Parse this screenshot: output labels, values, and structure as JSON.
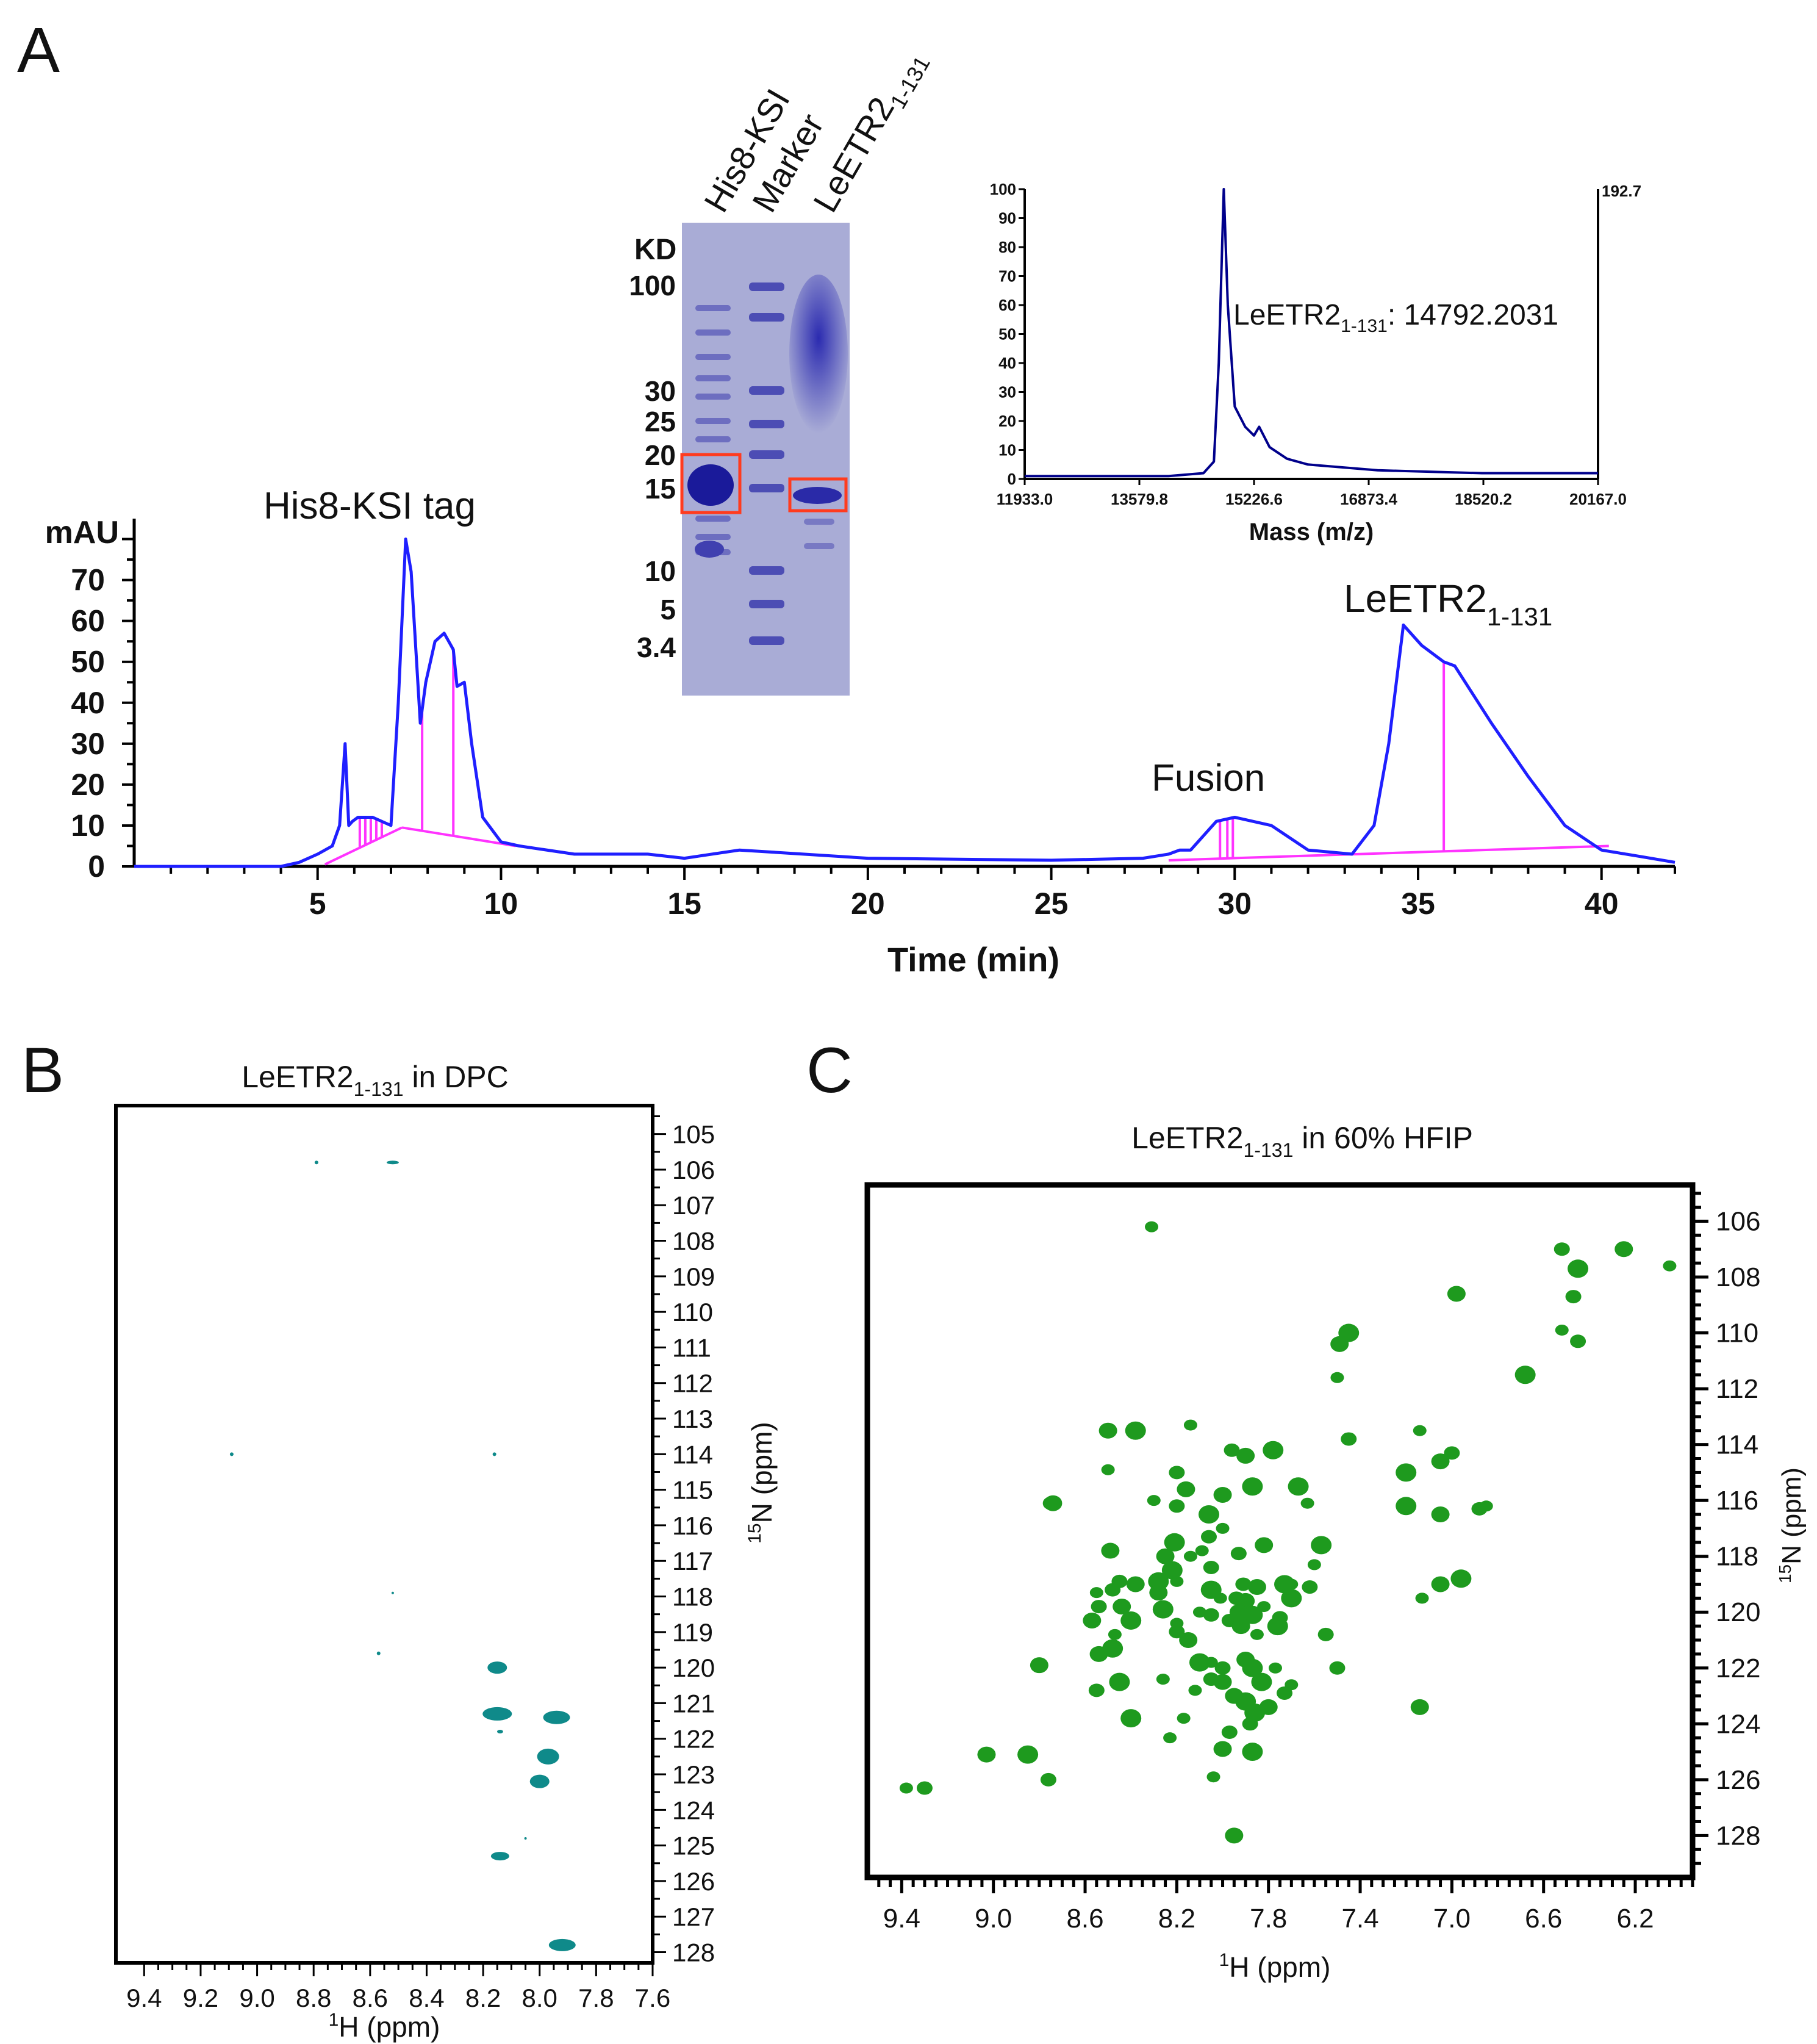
{
  "panels": {
    "a": "A",
    "b": "B",
    "c": "C"
  },
  "colors": {
    "trace": "#1f1fff",
    "baseline": "#ff33ff",
    "ms_trace": "#00008b",
    "ms_label": "#8b1a1a",
    "mass_axis": "#ff2020",
    "spot_b": "#0f8a8a",
    "spot_c": "#1e9a1e",
    "gel_bg": "#a9acd6",
    "gel_band": "#3c3cae",
    "box": "#ff3b1f"
  },
  "chromatogram": {
    "ylabel": "mAU",
    "xlabel": "Time (min)",
    "x_ticks": [
      "5",
      "10",
      "15",
      "20",
      "25",
      "30",
      "35",
      "40"
    ],
    "y_ticks": [
      "0",
      "10",
      "20",
      "30",
      "40",
      "50",
      "60",
      "70"
    ],
    "peak_labels": {
      "his": "His8-KSI tag",
      "fusion": "Fusion",
      "le_main": "LeETR2",
      "le_sub": "1-131"
    }
  },
  "gel": {
    "lanes": [
      "His8-KSI",
      "Marker",
      "LeETR2"
    ],
    "lane3_sub": "1-131",
    "kd_label": "KD",
    "markers": [
      "100",
      "30",
      "25",
      "20",
      "15",
      "10",
      "5",
      "3.4"
    ]
  },
  "ms": {
    "y_ticks": [
      "0",
      "10",
      "20",
      "30",
      "40",
      "50",
      "60",
      "70",
      "80",
      "90",
      "100"
    ],
    "x_ticks": [
      "11933.0",
      "13579.8",
      "15226.6",
      "16873.4",
      "18520.2",
      "20167.0"
    ],
    "right_label": "192.7",
    "xlabel": "Mass (m/z)",
    "peak_main": "LeETR2",
    "peak_sub": "1-131",
    "peak_value": ": 14792.2031"
  },
  "nmr_b": {
    "title_main": "LeETR2",
    "title_sub": "1-131",
    "title_rest": " in DPC",
    "x_ticks": [
      "9.4",
      "9.2",
      "9.0",
      "8.8",
      "8.6",
      "8.4",
      "8.2",
      "8.0",
      "7.8",
      "7.6"
    ],
    "y_ticks": [
      "105",
      "106",
      "107",
      "108",
      "109",
      "110",
      "111",
      "112",
      "113",
      "114",
      "115",
      "116",
      "117",
      "118",
      "119",
      "120",
      "121",
      "122",
      "123",
      "124",
      "125",
      "126",
      "127",
      "128"
    ],
    "xlabel_sup": "1",
    "xlabel": "H (ppm)",
    "ylabel_sup": "15",
    "ylabel": "N (ppm)"
  },
  "nmr_c": {
    "title_main": "LeETR2",
    "title_sub": "1-131",
    "title_rest": " in 60% HFIP",
    "x_ticks": [
      "9.4",
      "9.0",
      "8.6",
      "8.2",
      "7.8",
      "7.4",
      "7.0",
      "6.6",
      "6.2"
    ],
    "y_ticks": [
      "106",
      "108",
      "110",
      "112",
      "114",
      "116",
      "118",
      "120",
      "122",
      "124",
      "126",
      "128"
    ],
    "xlabel_sup": "1",
    "xlabel": "H (ppm)",
    "ylabel_sup": "15",
    "ylabel": "N (ppm)"
  },
  "chart_data": [
    {
      "type": "line",
      "title": "",
      "xlabel": "Time (min)",
      "ylabel": "mAU",
      "xlim": [
        0,
        42
      ],
      "ylim": [
        0,
        85
      ],
      "series": [
        {
          "x": [
            0,
            4,
            4.5,
            5,
            5.4,
            5.6,
            5.75,
            5.85,
            5.95,
            6.1,
            6.5,
            7.0,
            7.2,
            7.4,
            7.55,
            7.8,
            7.95,
            8.2,
            8.45,
            8.7,
            8.8,
            9.0,
            9.2,
            9.5,
            10,
            10.5,
            12,
            14,
            15,
            16.5,
            20,
            25,
            27.5,
            28.2,
            28.5,
            28.8,
            29.5,
            30,
            31,
            32,
            33.2,
            33.8,
            34.2,
            34.6,
            35.1,
            35.7,
            36.0,
            37,
            38,
            39,
            40,
            41,
            42
          ],
          "y": [
            0,
            0,
            1,
            3,
            5,
            10,
            30,
            10,
            11,
            12,
            12,
            10,
            40,
            80,
            72,
            35,
            45,
            55,
            57,
            53,
            44,
            45,
            30,
            12,
            6,
            5,
            3,
            3,
            2,
            4,
            2,
            1.5,
            2,
            3,
            4,
            4,
            11,
            12,
            10,
            4,
            3,
            10,
            30,
            59,
            54,
            50,
            49,
            35,
            22,
            10,
            4,
            2.5,
            1
          ]
        }
      ]
    },
    {
      "type": "line",
      "title": "",
      "xlabel": "Mass (m/z)",
      "ylabel": "",
      "xlim": [
        11933.0,
        20167.0
      ],
      "ylim": [
        0,
        100
      ],
      "series": [
        {
          "x": [
            11933,
            13000,
            14000,
            14500,
            14650,
            14720,
            14792,
            14850,
            14950,
            15100,
            15226,
            15300,
            15450,
            15700,
            16000,
            17000,
            18500,
            20167
          ],
          "y": [
            1,
            1,
            1,
            2,
            6,
            40,
            100,
            60,
            25,
            18,
            15,
            18,
            11,
            7,
            5,
            3,
            2,
            2
          ]
        }
      ]
    },
    {
      "type": "scatter",
      "title": "LeETR2 1-131 in DPC",
      "xlabel": "1H (ppm)",
      "ylabel": "15N (ppm)",
      "xlim": [
        9.5,
        7.6
      ],
      "ylim": [
        104.2,
        128.3
      ],
      "points": [
        [
          8.52,
          105.8,
          10,
          3
        ],
        [
          8.79,
          105.8,
          3,
          3
        ],
        [
          9.09,
          114.0,
          3,
          3
        ],
        [
          8.16,
          114.0,
          3,
          3
        ],
        [
          8.52,
          117.9,
          2,
          2
        ],
        [
          8.57,
          119.6,
          3,
          3
        ],
        [
          8.15,
          120.0,
          16,
          10
        ],
        [
          8.15,
          121.3,
          24,
          11
        ],
        [
          7.94,
          121.4,
          22,
          11
        ],
        [
          8.14,
          121.8,
          5,
          3
        ],
        [
          7.97,
          122.5,
          18,
          13
        ],
        [
          8.0,
          123.2,
          16,
          11
        ],
        [
          8.05,
          124.8,
          2,
          2
        ],
        [
          8.14,
          125.3,
          15,
          7
        ],
        [
          7.92,
          127.8,
          22,
          10
        ]
      ]
    },
    {
      "type": "scatter",
      "title": "LeETR2 1-131 in 60% HFIP",
      "xlabel": "1H (ppm)",
      "ylabel": "15N (ppm)",
      "xlim": [
        9.55,
        5.95
      ],
      "ylim": [
        104.7,
        129.5
      ],
      "points": [
        [
          8.31,
          106.2
        ],
        [
          6.52,
          107.0
        ],
        [
          6.25,
          107.0
        ],
        [
          6.45,
          107.7
        ],
        [
          6.05,
          107.6
        ],
        [
          6.47,
          108.7
        ],
        [
          6.98,
          108.6
        ],
        [
          7.45,
          110.0
        ],
        [
          6.52,
          109.9
        ],
        [
          6.45,
          110.3
        ],
        [
          7.49,
          110.4
        ],
        [
          6.68,
          111.5
        ],
        [
          7.5,
          111.6
        ],
        [
          7.45,
          113.8
        ],
        [
          8.5,
          113.5
        ],
        [
          8.38,
          113.5
        ],
        [
          8.14,
          113.3
        ],
        [
          7.96,
          114.2
        ],
        [
          7.9,
          114.4
        ],
        [
          7.78,
          114.2
        ],
        [
          7.14,
          113.5
        ],
        [
          7.0,
          114.3
        ],
        [
          7.05,
          114.6
        ],
        [
          7.2,
          115.0
        ],
        [
          8.5,
          114.9
        ],
        [
          8.2,
          115.0
        ],
        [
          8.16,
          115.6
        ],
        [
          7.87,
          115.5
        ],
        [
          8.3,
          116.0
        ],
        [
          8.2,
          116.2
        ],
        [
          8.0,
          115.8
        ],
        [
          7.67,
          115.5
        ],
        [
          7.63,
          116.1
        ],
        [
          8.75,
          116.1
        ],
        [
          8.74,
          116.1
        ],
        [
          7.2,
          116.2
        ],
        [
          6.85,
          116.2
        ],
        [
          6.88,
          116.3
        ],
        [
          7.05,
          116.5
        ],
        [
          8.06,
          116.5
        ],
        [
          8.0,
          117.0
        ],
        [
          8.06,
          117.3
        ],
        [
          8.49,
          117.8
        ],
        [
          8.21,
          117.5
        ],
        [
          8.09,
          117.8
        ],
        [
          7.93,
          117.9
        ],
        [
          7.82,
          117.6
        ],
        [
          7.57,
          117.6
        ],
        [
          8.14,
          118.0
        ],
        [
          8.05,
          118.4
        ],
        [
          8.25,
          118.0
        ],
        [
          8.22,
          118.5
        ],
        [
          7.6,
          118.3
        ],
        [
          8.45,
          118.9
        ],
        [
          8.38,
          119.0
        ],
        [
          8.28,
          118.9
        ],
        [
          8.2,
          118.9
        ],
        [
          7.91,
          119.0
        ],
        [
          7.85,
          119.1
        ],
        [
          7.73,
          119.0
        ],
        [
          7.7,
          119.0
        ],
        [
          7.62,
          119.1
        ],
        [
          7.05,
          119.0
        ],
        [
          6.96,
          118.8
        ],
        [
          8.55,
          119.3
        ],
        [
          8.48,
          119.2
        ],
        [
          8.28,
          119.3
        ],
        [
          8.05,
          119.2
        ],
        [
          8.01,
          119.5
        ],
        [
          7.94,
          119.5
        ],
        [
          7.9,
          119.6
        ],
        [
          7.7,
          119.5
        ],
        [
          7.13,
          119.5
        ],
        [
          8.54,
          119.8
        ],
        [
          8.44,
          119.8
        ],
        [
          8.26,
          119.9
        ],
        [
          8.1,
          120.0
        ],
        [
          8.05,
          120.1
        ],
        [
          7.93,
          120.0
        ],
        [
          7.87,
          120.1
        ],
        [
          7.82,
          119.8
        ],
        [
          7.75,
          120.2
        ],
        [
          8.57,
          120.3
        ],
        [
          8.4,
          120.3
        ],
        [
          8.2,
          120.4
        ],
        [
          7.97,
          120.3
        ],
        [
          7.92,
          120.5
        ],
        [
          7.76,
          120.5
        ],
        [
          8.47,
          120.8
        ],
        [
          8.2,
          120.7
        ],
        [
          8.15,
          121.0
        ],
        [
          8.48,
          121.3
        ],
        [
          7.85,
          120.8
        ],
        [
          7.55,
          120.8
        ],
        [
          8.54,
          121.5
        ],
        [
          8.1,
          121.8
        ],
        [
          8.05,
          121.8
        ],
        [
          8.0,
          122.0
        ],
        [
          7.9,
          121.7
        ],
        [
          7.87,
          122.0
        ],
        [
          7.77,
          122.0
        ],
        [
          7.5,
          122.0
        ],
        [
          8.8,
          121.9
        ],
        [
          8.45,
          122.5
        ],
        [
          8.26,
          122.4
        ],
        [
          8.05,
          122.4
        ],
        [
          8.0,
          122.5
        ],
        [
          7.83,
          122.5
        ],
        [
          7.7,
          122.6
        ],
        [
          8.55,
          122.8
        ],
        [
          7.95,
          123.0
        ],
        [
          7.9,
          123.2
        ],
        [
          8.12,
          122.8
        ],
        [
          7.73,
          122.9
        ],
        [
          7.8,
          123.4
        ],
        [
          7.86,
          123.6
        ],
        [
          8.17,
          123.8
        ],
        [
          7.88,
          124.0
        ],
        [
          7.14,
          123.4
        ],
        [
          8.4,
          123.8
        ],
        [
          8.23,
          124.5
        ],
        [
          7.97,
          124.3
        ],
        [
          8.0,
          124.9
        ],
        [
          7.87,
          125.0
        ],
        [
          8.04,
          125.9
        ],
        [
          8.76,
          126.0
        ],
        [
          9.03,
          125.1
        ],
        [
          8.85,
          125.1
        ],
        [
          9.38,
          126.3
        ],
        [
          9.3,
          126.3
        ],
        [
          7.95,
          128.0
        ]
      ]
    }
  ]
}
